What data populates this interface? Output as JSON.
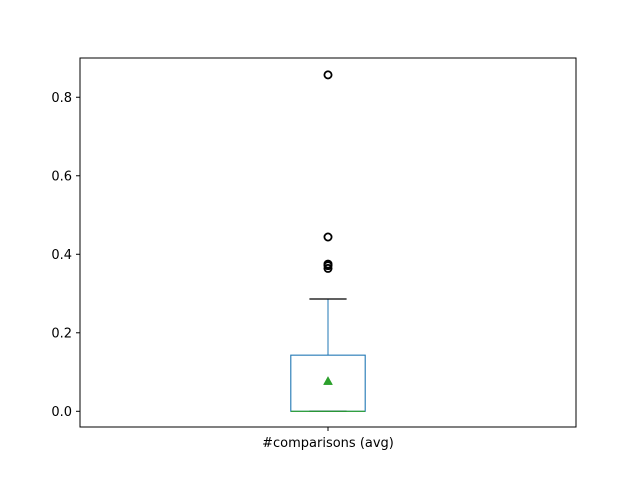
{
  "chart_data": {
    "type": "box",
    "title": "",
    "xlabel": "",
    "ylabel": "",
    "categories": [
      "#comparisons (avg)"
    ],
    "ylim": [
      -0.04,
      0.9
    ],
    "yticks": [
      0.0,
      0.2,
      0.4,
      0.6,
      0.8
    ],
    "ytick_labels": [
      "0.0",
      "0.2",
      "0.4",
      "0.6",
      "0.8"
    ],
    "grid": false,
    "boxes": [
      {
        "category": "#comparisons (avg)",
        "whisker_low": 0.0,
        "q1": 0.0,
        "median": 0.0,
        "q3": 0.143,
        "whisker_high": 0.286,
        "mean": 0.077,
        "outliers": [
          0.364,
          0.371,
          0.375,
          0.444,
          0.857
        ]
      }
    ],
    "colors": {
      "box": "#1f77b4",
      "median": "#2ca02c",
      "mean": "#2ca02c",
      "whisker_cap": "#000000",
      "outlier": "#000000"
    }
  }
}
